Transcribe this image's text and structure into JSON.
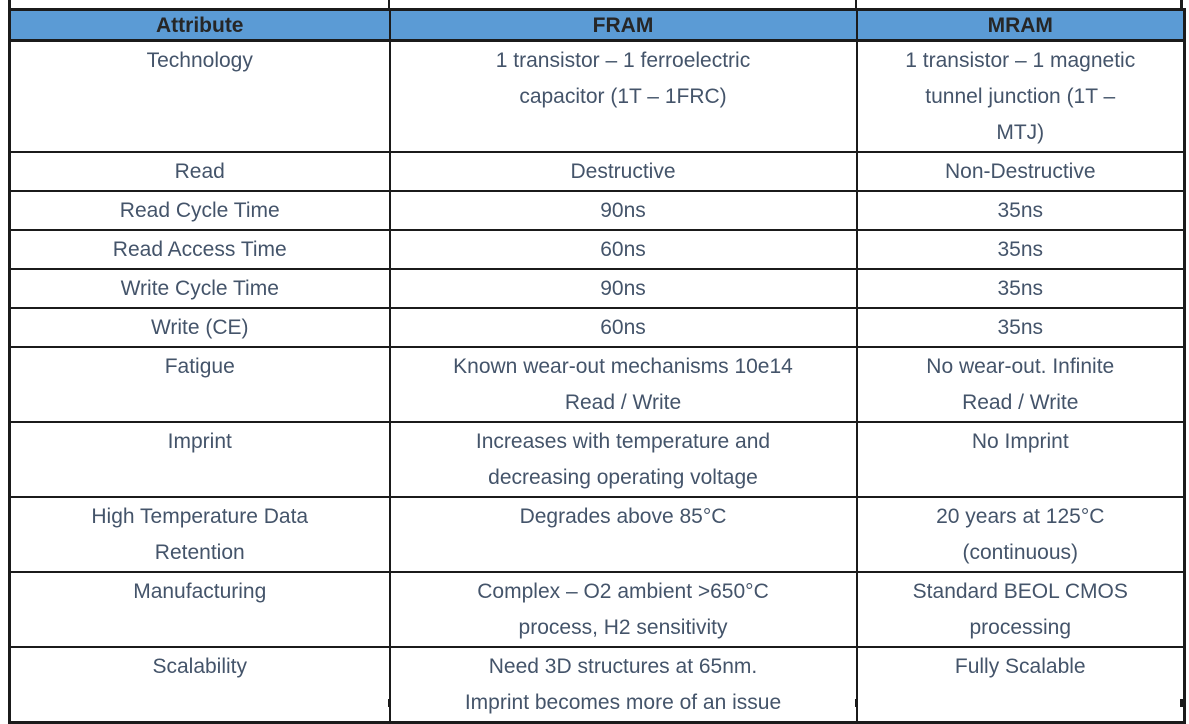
{
  "colors": {
    "header_bg": "#5B9BD5",
    "header_text": "#262626",
    "body_text": "#44546A",
    "border": "#1b1b1b"
  },
  "table": {
    "headers": [
      "Attribute",
      "FRAM",
      "MRAM"
    ],
    "rows": [
      {
        "attribute": "Technology",
        "fram": "1 transistor – 1 ferroelectric\ncapacitor (1T – 1FRC)",
        "mram": "1 transistor – 1 magnetic\ntunnel junction (1T –\nMTJ)"
      },
      {
        "attribute": "Read",
        "fram": "Destructive",
        "mram": "Non-Destructive"
      },
      {
        "attribute": "Read Cycle Time",
        "fram": "90ns",
        "mram": "35ns"
      },
      {
        "attribute": "Read Access Time",
        "fram": "60ns",
        "mram": "35ns"
      },
      {
        "attribute": "Write Cycle Time",
        "fram": "90ns",
        "mram": "35ns"
      },
      {
        "attribute": "Write (CE)",
        "fram": "60ns",
        "mram": "35ns"
      },
      {
        "attribute": "Fatigue",
        "fram": "Known wear-out mechanisms 10e14\nRead / Write",
        "mram": "No wear-out. Infinite\nRead / Write"
      },
      {
        "attribute": "Imprint",
        "fram": "Increases with temperature and\ndecreasing operating voltage",
        "mram": "No Imprint"
      },
      {
        "attribute": "High Temperature Data\nRetention",
        "fram": "Degrades above 85°C",
        "mram": "20 years at 125°C\n(continuous)"
      },
      {
        "attribute": "Manufacturing",
        "fram": "Complex – O2 ambient >650°C\nprocess, H2 sensitivity",
        "mram": "Standard BEOL CMOS\nprocessing"
      },
      {
        "attribute": "Scalability",
        "fram": "Need 3D structures at 65nm.\nImprint becomes more of an issue",
        "mram": "Fully Scalable"
      }
    ]
  }
}
